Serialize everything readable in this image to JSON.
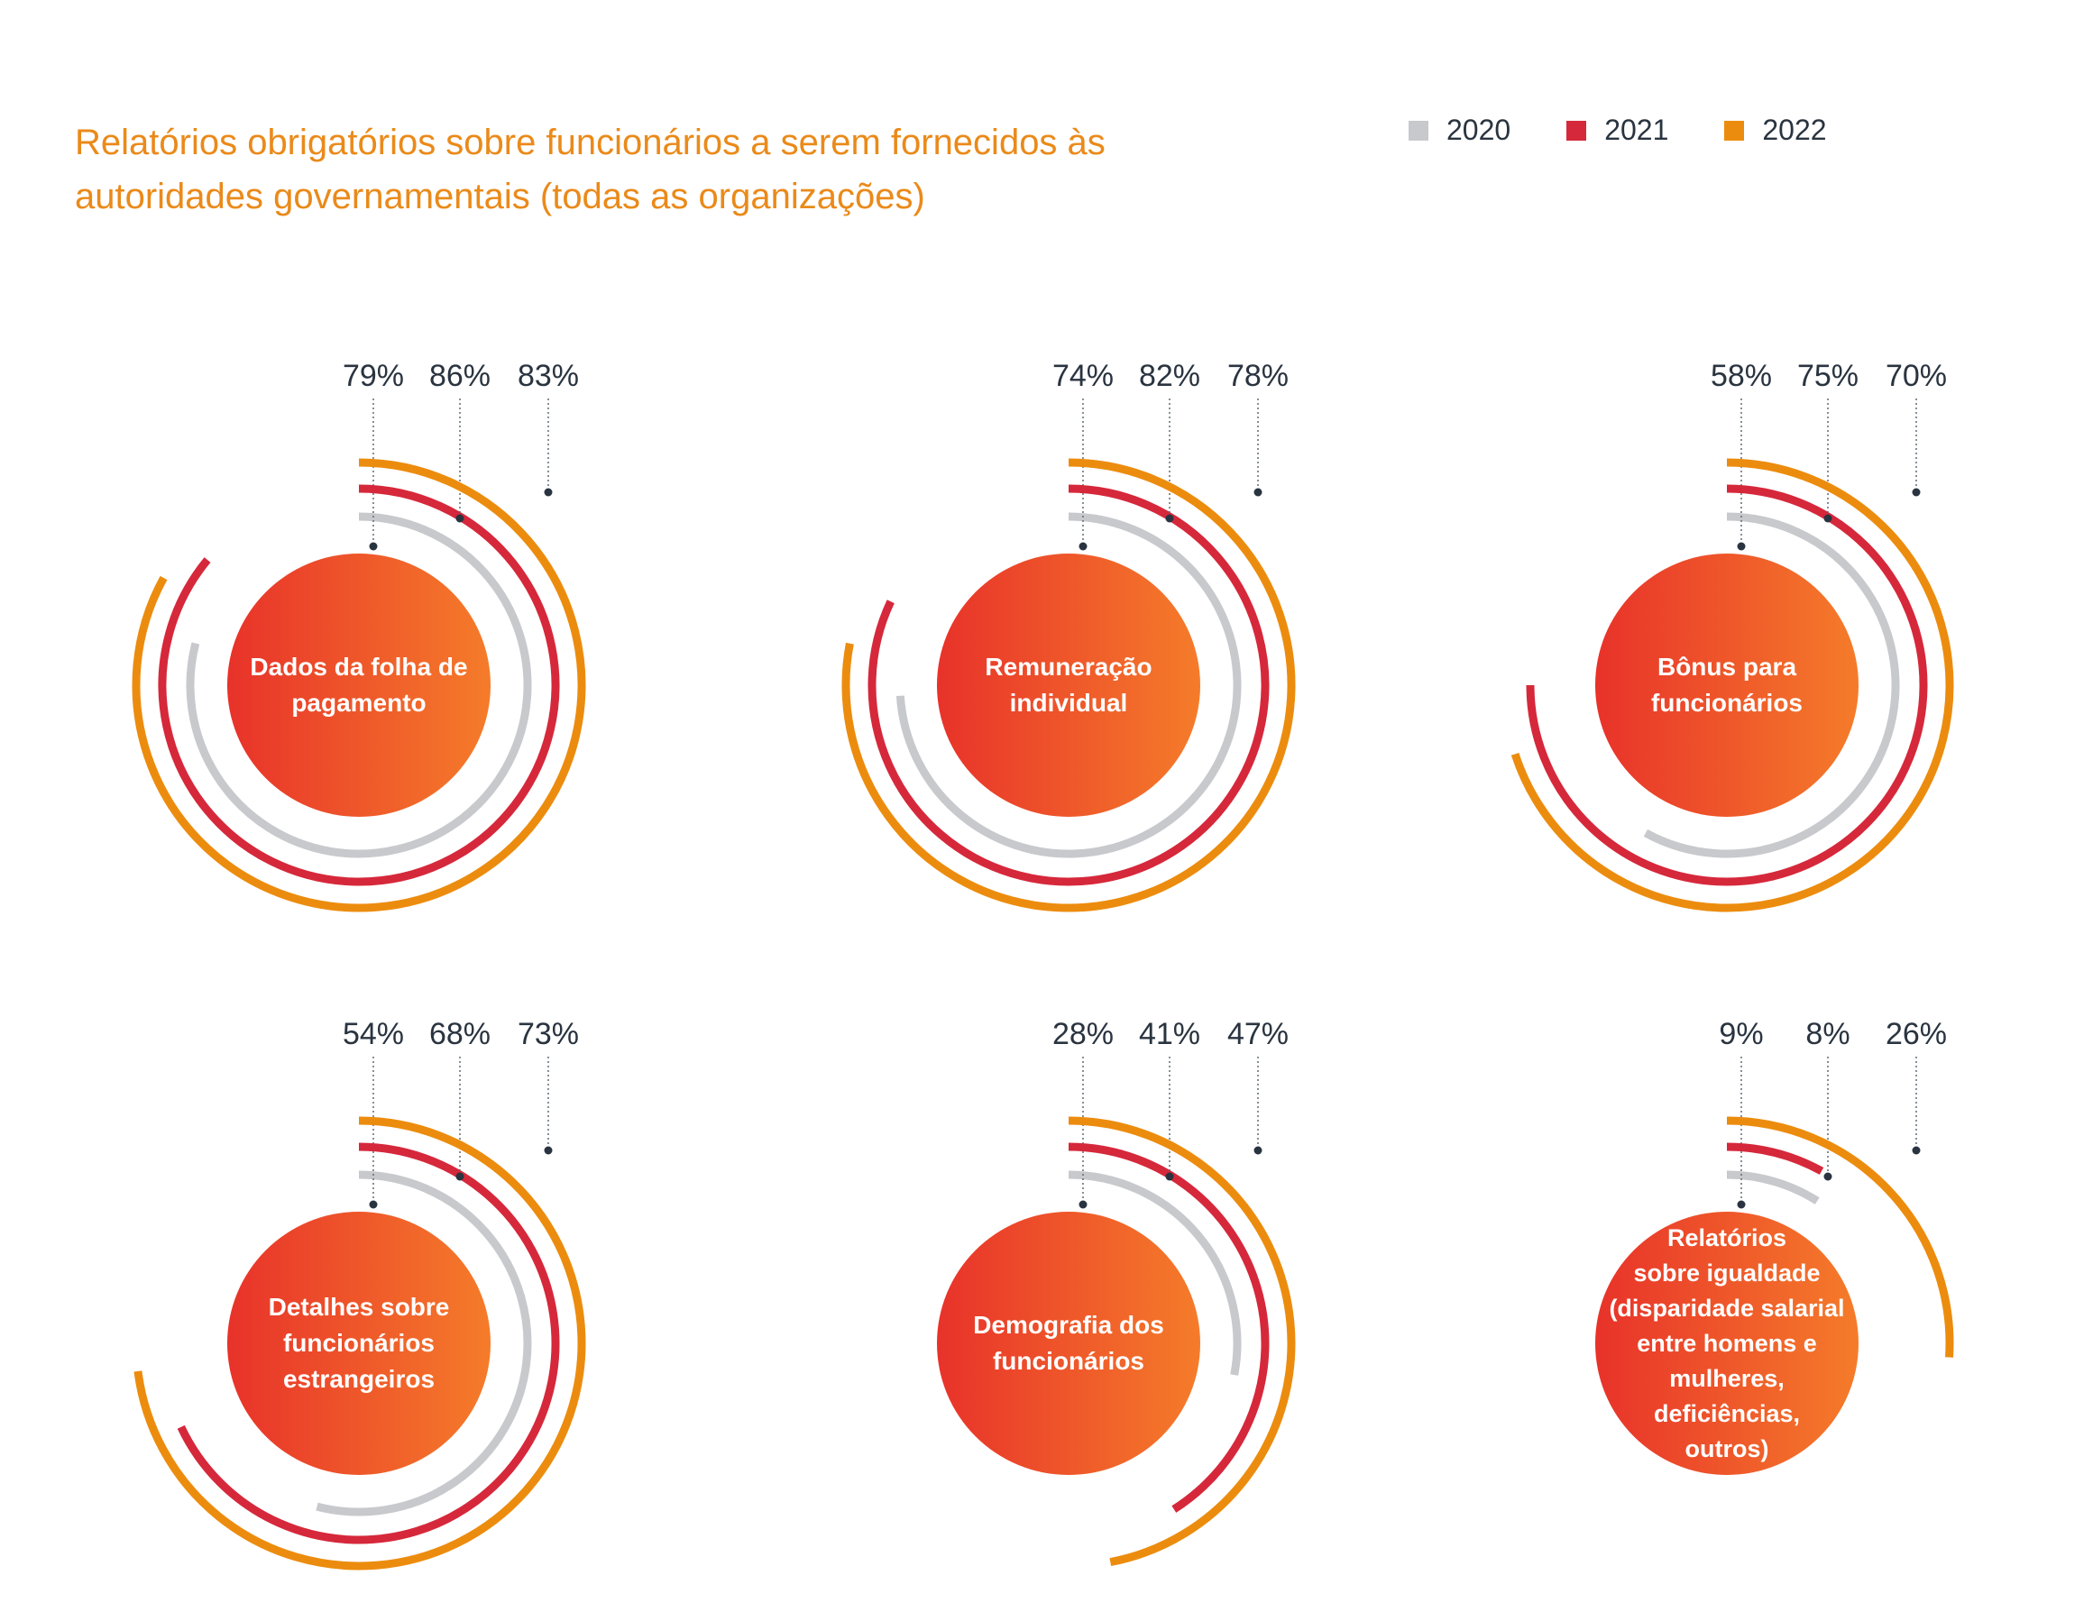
{
  "title": {
    "line1": "Relatórios obrigatórios sobre funcionários a serem fornecidos às",
    "line2": "autoridades governamentais (todas as organizações)"
  },
  "legend": [
    {
      "label": "2020",
      "color": "#c7c9cc"
    },
    {
      "label": "2021",
      "color": "#d6283b"
    },
    {
      "label": "2022",
      "color": "#ec8c0e"
    }
  ],
  "chart_data": {
    "type": "radial-bar",
    "series_names": [
      "2020",
      "2021",
      "2022"
    ],
    "colors": {
      "2020": "#c7c9cc",
      "2021": "#d6283b",
      "2022": "#ec8c0e",
      "center_from": "#e8322a",
      "center_to": "#f57c2a"
    },
    "unit": "%",
    "categories": [
      {
        "label_lines": [
          "Dados da folha de",
          "pagamento"
        ],
        "values": [
          79,
          86,
          83
        ]
      },
      {
        "label_lines": [
          "Remuneração",
          "individual"
        ],
        "values": [
          74,
          82,
          78
        ]
      },
      {
        "label_lines": [
          "Bônus para",
          "funcionários"
        ],
        "values": [
          58,
          75,
          70
        ]
      },
      {
        "label_lines": [
          "Detalhes sobre",
          "funcionários",
          "estrangeiros"
        ],
        "values": [
          54,
          68,
          73
        ]
      },
      {
        "label_lines": [
          "Demografia dos",
          "funcionários"
        ],
        "values": [
          28,
          41,
          47
        ]
      },
      {
        "label_lines": [
          "Relatórios",
          "sobre igualdade",
          "(disparidade salarial",
          "entre homens e",
          "mulheres,",
          "deficiências,",
          "outros)"
        ],
        "values": [
          9,
          8,
          26
        ]
      }
    ]
  }
}
